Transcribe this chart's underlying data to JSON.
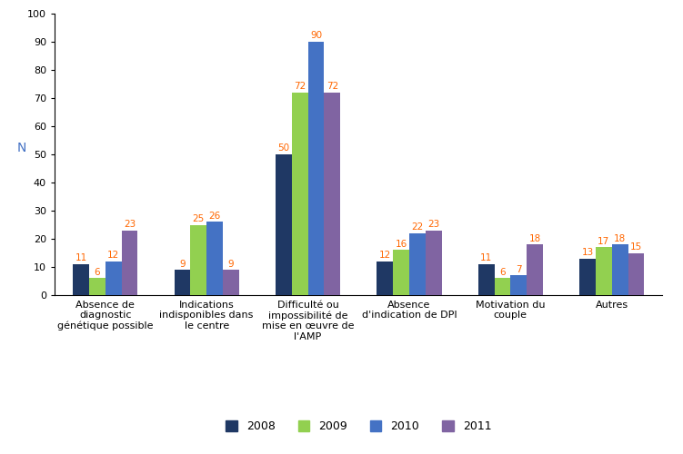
{
  "categories": [
    "Absence de\ndiagnostic\ngénétique possible",
    "Indications\nindisponibles dans\nle centre",
    "Difficulté ou\nimpossibilité de\nmise en œuvre de\nl'AMP",
    "Absence\nd'indication de DPI",
    "Motivation du\ncouple",
    "Autres"
  ],
  "series": {
    "2008": [
      11,
      9,
      50,
      12,
      11,
      13
    ],
    "2009": [
      6,
      25,
      72,
      16,
      6,
      17
    ],
    "2010": [
      12,
      26,
      90,
      22,
      7,
      18
    ],
    "2011": [
      23,
      9,
      72,
      23,
      18,
      15
    ]
  },
  "colors": {
    "2008": "#1F3864",
    "2009": "#92D050",
    "2010": "#4472C4",
    "2011": "#8064A2"
  },
  "label_color": "#FF6600",
  "ylim": [
    0,
    100
  ],
  "yticks": [
    0,
    10,
    20,
    30,
    40,
    50,
    60,
    70,
    80,
    90,
    100
  ],
  "ylabel": "N",
  "legend_labels": [
    "2008",
    "2009",
    "2010",
    "2011"
  ],
  "bar_width": 0.16,
  "background_color": "#ffffff",
  "label_fontsize": 7.5,
  "tick_fontsize": 8,
  "axis_label_fontsize": 9
}
